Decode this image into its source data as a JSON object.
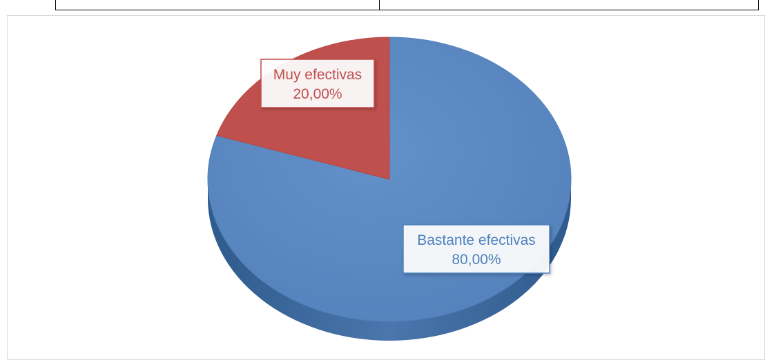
{
  "chart_data": {
    "type": "pie",
    "title": "",
    "series": [
      {
        "name": "",
        "values": [
          20,
          80
        ]
      }
    ],
    "categories": [
      "Muy efectivas",
      "Bastante efectivas"
    ],
    "slices": [
      {
        "label": "Muy efectivas",
        "percent_label": "20,00%",
        "value": 20,
        "color": "#c0504d"
      },
      {
        "label": "Bastante efectivas",
        "percent_label": "80,00%",
        "value": 80,
        "color": "#4f81bd"
      }
    ],
    "style": "3d-exploded",
    "legend": "none"
  }
}
